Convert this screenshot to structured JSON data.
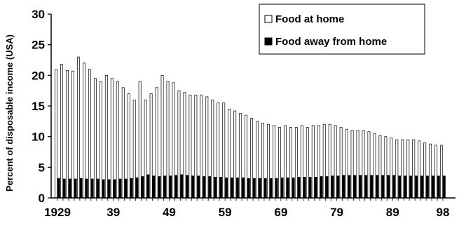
{
  "chart_data": {
    "type": "bar",
    "title": "",
    "xlabel": "",
    "ylabel": "Percent of disposable income (USA)",
    "ylim": [
      0,
      30
    ],
    "yticks": [
      "0",
      "5",
      "10",
      "15",
      "20",
      "25",
      "30"
    ],
    "xtick_labels": [
      {
        "year": 1929,
        "label": "1929"
      },
      {
        "year": 1939,
        "label": "39"
      },
      {
        "year": 1949,
        "label": "49"
      },
      {
        "year": 1959,
        "label": "59"
      },
      {
        "year": 1969,
        "label": "69"
      },
      {
        "year": 1979,
        "label": "79"
      },
      {
        "year": 1989,
        "label": "89"
      },
      {
        "year": 1998,
        "label": "98"
      }
    ],
    "legend_position": "top-right",
    "grid": false,
    "categories": [
      1929,
      1930,
      1931,
      1932,
      1933,
      1934,
      1935,
      1936,
      1937,
      1938,
      1939,
      1940,
      1941,
      1942,
      1943,
      1944,
      1945,
      1946,
      1947,
      1948,
      1949,
      1950,
      1951,
      1952,
      1953,
      1954,
      1955,
      1956,
      1957,
      1958,
      1959,
      1960,
      1961,
      1962,
      1963,
      1964,
      1965,
      1966,
      1967,
      1968,
      1969,
      1970,
      1971,
      1972,
      1973,
      1974,
      1975,
      1976,
      1977,
      1978,
      1979,
      1980,
      1981,
      1982,
      1983,
      1984,
      1985,
      1986,
      1987,
      1988,
      1989,
      1990,
      1991,
      1992,
      1993,
      1994,
      1995,
      1996,
      1997,
      1998
    ],
    "series": [
      {
        "name": "Food at home",
        "fill": "#ffffff",
        "values": [
          20.9,
          21.8,
          20.8,
          20.7,
          23.0,
          22.0,
          21.0,
          19.5,
          19.0,
          20.0,
          19.5,
          19.0,
          18.0,
          17.0,
          16.0,
          19.0,
          16.0,
          17.0,
          18.0,
          20.0,
          19.0,
          18.8,
          17.5,
          17.2,
          16.8,
          16.8,
          16.8,
          16.5,
          16.0,
          15.5,
          15.5,
          14.5,
          14.2,
          13.8,
          13.5,
          13.0,
          12.5,
          12.2,
          12.0,
          11.8,
          11.5,
          11.8,
          11.5,
          11.5,
          11.8,
          11.5,
          11.8,
          11.8,
          12.0,
          12.0,
          11.8,
          11.5,
          11.2,
          11.0,
          11.0,
          11.0,
          10.8,
          10.5,
          10.2,
          10.0,
          9.8,
          9.5,
          9.5,
          9.5,
          9.5,
          9.3,
          9.0,
          8.8,
          8.6,
          8.6
        ]
      },
      {
        "name": "Food away from home",
        "fill": "#000000",
        "values": [
          3.2,
          3.1,
          3.1,
          3.1,
          3.2,
          3.1,
          3.1,
          3.1,
          3.0,
          3.0,
          3.0,
          3.1,
          3.1,
          3.2,
          3.3,
          3.5,
          3.8,
          3.6,
          3.5,
          3.6,
          3.6,
          3.7,
          3.8,
          3.7,
          3.6,
          3.6,
          3.5,
          3.5,
          3.4,
          3.4,
          3.3,
          3.3,
          3.3,
          3.3,
          3.2,
          3.2,
          3.2,
          3.2,
          3.2,
          3.2,
          3.3,
          3.3,
          3.3,
          3.4,
          3.4,
          3.4,
          3.4,
          3.5,
          3.5,
          3.6,
          3.6,
          3.7,
          3.7,
          3.7,
          3.7,
          3.7,
          3.7,
          3.7,
          3.7,
          3.7,
          3.7,
          3.6,
          3.6,
          3.6,
          3.6,
          3.6,
          3.6,
          3.6,
          3.6,
          3.6
        ]
      }
    ]
  }
}
